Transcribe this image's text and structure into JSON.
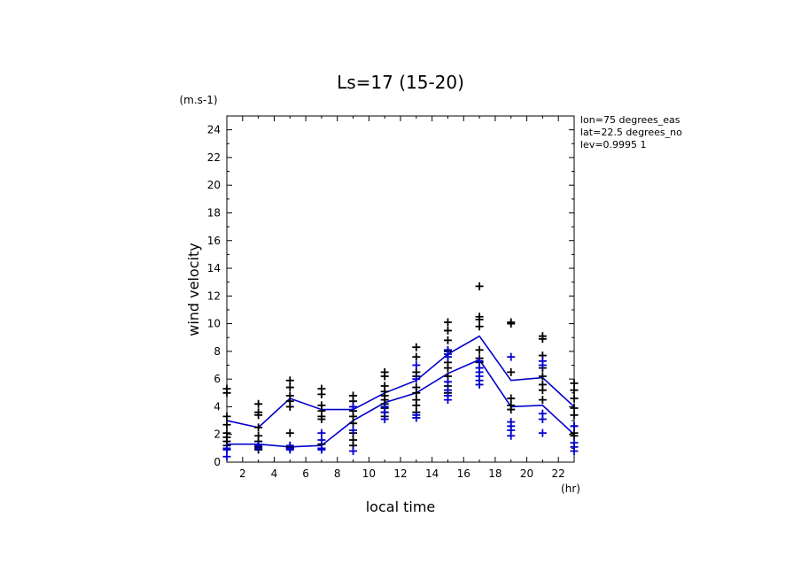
{
  "chart_data": {
    "type": "scatter",
    "title": "Ls=17 (15-20)",
    "xlabel": "local time",
    "ylabel": "wind velocity",
    "x_unit": "(hr)",
    "y_unit": "(m.s-1)",
    "xlim": [
      1,
      23
    ],
    "ylim": [
      0,
      25
    ],
    "x_ticks": [
      2,
      4,
      6,
      8,
      10,
      12,
      14,
      16,
      18,
      20,
      22
    ],
    "y_ticks": [
      0,
      2,
      4,
      6,
      8,
      10,
      12,
      14,
      16,
      18,
      20,
      22,
      24
    ],
    "annotations": [
      "lon=75 degrees_eas",
      "lat=22.5 degrees_no",
      "lev=0.9995 1"
    ],
    "colors": {
      "black": "#000000",
      "blue": "#0000cc"
    },
    "series": [
      {
        "kind": "line",
        "color": "blue",
        "x": [
          1,
          3,
          5,
          7,
          9,
          11,
          13,
          15,
          17,
          19,
          21,
          23
        ],
        "y": [
          3.0,
          2.5,
          4.6,
          3.8,
          3.8,
          5.0,
          5.9,
          7.8,
          9.1,
          5.9,
          6.1,
          4.0
        ]
      },
      {
        "kind": "line",
        "color": "blue",
        "x": [
          1,
          3,
          5,
          7,
          9,
          11,
          13,
          15,
          17,
          19,
          21,
          23
        ],
        "y": [
          1.3,
          1.3,
          1.1,
          1.2,
          3.0,
          4.3,
          5.0,
          6.4,
          7.4,
          4.0,
          4.1,
          2.0
        ]
      },
      {
        "kind": "points",
        "color": "black",
        "x": [
          1,
          1,
          1,
          1,
          1,
          1,
          1,
          1,
          1,
          3,
          3,
          3,
          3,
          3,
          3,
          3,
          3,
          5,
          5,
          5,
          5,
          5,
          5,
          5,
          5,
          7,
          7,
          7,
          7,
          7,
          7,
          7,
          7,
          9,
          9,
          9,
          9,
          9,
          9,
          9,
          9,
          11,
          11,
          11,
          11,
          11,
          11,
          11,
          11,
          11,
          11,
          13,
          13,
          13,
          13,
          13,
          13,
          13,
          13,
          13,
          15,
          15,
          15,
          15,
          15,
          15,
          15,
          15,
          15,
          17,
          17,
          17,
          17,
          17,
          17,
          17,
          17,
          19,
          19,
          19,
          19,
          19,
          19,
          21,
          21,
          21,
          21,
          21,
          21,
          21,
          21,
          23,
          23,
          23,
          23,
          23,
          23,
          23,
          23
        ],
        "y": [
          5.3,
          5.0,
          3.3,
          2.7,
          2.1,
          1.8,
          1.5,
          1.2,
          1.0,
          4.2,
          3.6,
          3.4,
          2.5,
          1.9,
          1.5,
          1.1,
          0.9,
          5.9,
          5.4,
          4.8,
          4.4,
          4.0,
          2.1,
          1.1,
          1.0,
          5.3,
          4.9,
          4.1,
          3.7,
          3.3,
          3.1,
          1.3,
          1.0,
          4.8,
          4.4,
          3.7,
          3.3,
          2.8,
          2.1,
          1.6,
          1.2,
          6.5,
          6.2,
          5.5,
          5.1,
          4.8,
          4.5,
          4.2,
          3.9,
          3.6,
          3.3,
          8.3,
          7.6,
          6.5,
          6.2,
          5.4,
          5.0,
          4.5,
          4.1,
          3.6,
          10.1,
          9.5,
          8.8,
          8.0,
          7.2,
          6.8,
          6.2,
          5.5,
          5.0,
          12.7,
          10.5,
          10.3,
          9.8,
          8.1,
          7.5,
          7.2,
          6.8,
          10.1,
          10.0,
          6.5,
          4.6,
          4.1,
          3.8,
          9.1,
          8.9,
          7.7,
          6.8,
          6.2,
          5.6,
          5.2,
          4.5,
          5.7,
          5.2,
          4.6,
          3.9,
          3.4,
          2.6,
          2.1,
          1.9
        ]
      },
      {
        "kind": "points",
        "color": "blue",
        "x": [
          1,
          1,
          1,
          3,
          3,
          5,
          5,
          5,
          7,
          7,
          7,
          7,
          9,
          9,
          9,
          11,
          11,
          11,
          13,
          13,
          13,
          13,
          15,
          15,
          15,
          15,
          15,
          15,
          15,
          17,
          17,
          17,
          17,
          17,
          17,
          19,
          19,
          19,
          19,
          19,
          21,
          21,
          21,
          21,
          21,
          23,
          23,
          23,
          23
        ],
        "y": [
          1.0,
          0.9,
          0.4,
          1.2,
          1.0,
          1.2,
          1.0,
          0.9,
          2.1,
          1.6,
          1.0,
          0.9,
          4.0,
          2.3,
          0.8,
          4.0,
          3.6,
          3.1,
          7.0,
          6.0,
          3.4,
          3.2,
          8.1,
          7.8,
          7.6,
          5.8,
          5.2,
          4.8,
          4.5,
          7.3,
          6.8,
          6.5,
          6.2,
          5.9,
          5.6,
          7.6,
          2.9,
          2.6,
          2.3,
          1.9,
          7.3,
          7.0,
          3.5,
          3.1,
          2.1,
          2.6,
          1.4,
          1.1,
          0.8
        ]
      }
    ]
  }
}
